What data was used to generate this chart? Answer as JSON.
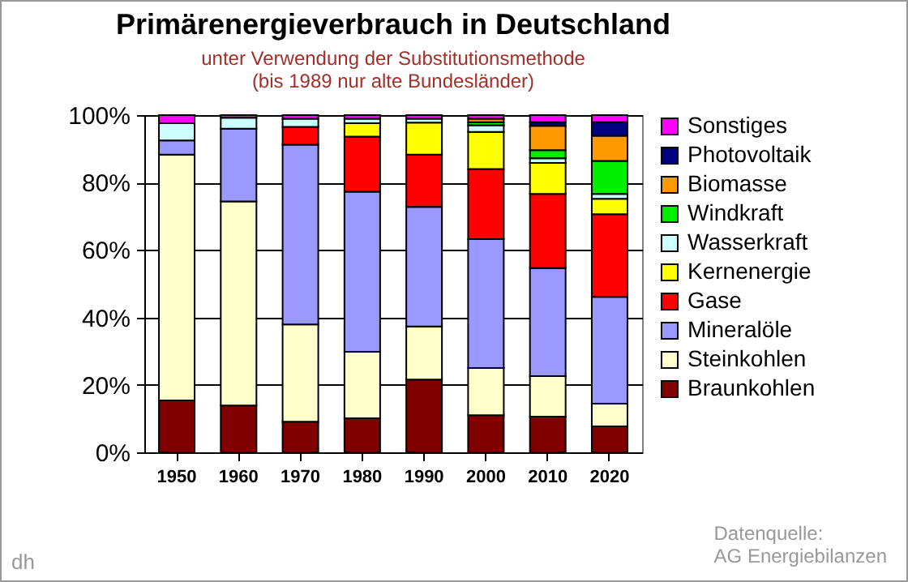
{
  "chart_data": {
    "type": "bar",
    "stacked": true,
    "title": "Primärenergieverbrauch in Deutschland",
    "subtitle": "unter Verwendung  der Substitutionsmethode\n(bis 1989 nur alte Bundesländer)",
    "categories": [
      "1950",
      "1960",
      "1970",
      "1980",
      "1990",
      "2000",
      "2010",
      "2020"
    ],
    "series": [
      {
        "name": "Braunkohlen",
        "color": "#800000",
        "values": [
          15.4,
          13.9,
          9.1,
          10.1,
          21.6,
          11.0,
          10.6,
          7.7
        ]
      },
      {
        "name": "Steinkohlen",
        "color": "#ffffcc",
        "values": [
          72.9,
          60.5,
          28.8,
          19.7,
          15.7,
          14.0,
          12.0,
          6.7
        ]
      },
      {
        "name": "Mineralöle",
        "color": "#9999ff",
        "values": [
          4.2,
          21.6,
          53.3,
          47.5,
          35.5,
          38.2,
          32.0,
          31.7
        ]
      },
      {
        "name": "Gase",
        "color": "#ff0000",
        "values": [
          null,
          null,
          5.3,
          16.3,
          15.5,
          20.8,
          22.0,
          24.5
        ]
      },
      {
        "name": "Kernenergie",
        "color": "#ffff00",
        "values": [
          null,
          null,
          null,
          4.0,
          9.5,
          11.0,
          9.2,
          4.6
        ]
      },
      {
        "name": "Wasserkraft",
        "color": "#ccffff",
        "values": [
          5.1,
          3.2,
          2.4,
          1.3,
          1.1,
          2.0,
          1.4,
          1.4
        ]
      },
      {
        "name": "Windkraft",
        "color": "#00ee00",
        "values": [
          null,
          null,
          null,
          null,
          null,
          0.9,
          2.4,
          9.8
        ]
      },
      {
        "name": "Biomasse",
        "color": "#ff9900",
        "values": [
          null,
          null,
          null,
          null,
          null,
          1.0,
          7.2,
          7.5
        ]
      },
      {
        "name": "Photovoltaik",
        "color": "#000080",
        "values": [
          null,
          null,
          null,
          null,
          null,
          null,
          1.1,
          4.0
        ]
      },
      {
        "name": "Sonstiges",
        "color": "#ff00ff",
        "values": [
          2.4,
          0.8,
          1.1,
          1.1,
          1.1,
          1.1,
          2.1,
          2.1
        ]
      }
    ],
    "ylim": [
      0,
      100
    ],
    "yticks": [
      {
        "value": 0,
        "label": "0%"
      },
      {
        "value": 20,
        "label": "20%"
      },
      {
        "value": 40,
        "label": "40%"
      },
      {
        "value": 60,
        "label": "60%"
      },
      {
        "value": 80,
        "label": "80%"
      },
      {
        "value": 100,
        "label": "100%"
      }
    ],
    "grid": "y",
    "legend": "right",
    "annotations": [
      "dh",
      "Datenquelle:\nAG Energiebilanzen"
    ]
  }
}
